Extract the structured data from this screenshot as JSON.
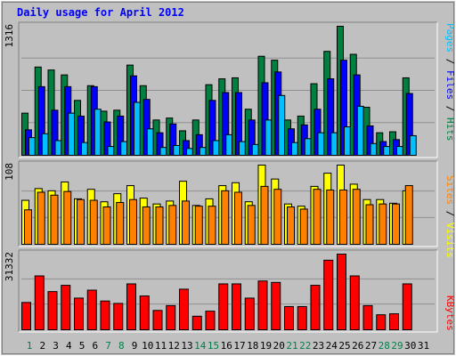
{
  "title": "Daily usage for April 2012",
  "colors": {
    "background": "#c0c0c0",
    "panel": "#c0c0c0",
    "grid": "#909090",
    "hits": "#008040",
    "files": "#0000ff",
    "pages": "#00c0ff",
    "visits": "#ffff00",
    "sites": "#ff8000",
    "kbytes": "#ff0000",
    "weekend_label": "#00804c",
    "weekday_label": "#000000"
  },
  "right_labels": {
    "pages": "Pages",
    "files": "Files",
    "hits": "Hits",
    "sites": "Sites",
    "visits": "Visits",
    "kbytes": "KBytes",
    "sep": " / "
  },
  "chart_data": [
    {
      "type": "bar",
      "name": "hits-files-pages",
      "max_label": "1316",
      "ylim": [
        0,
        1316
      ],
      "categories": [
        "1",
        "2",
        "3",
        "4",
        "5",
        "6",
        "7",
        "8",
        "9",
        "10",
        "11",
        "12",
        "13",
        "14",
        "15",
        "16",
        "17",
        "18",
        "19",
        "20",
        "21",
        "22",
        "23",
        "24",
        "25",
        "26",
        "27",
        "28",
        "29",
        "30",
        "31"
      ],
      "series": [
        {
          "name": "Hits",
          "values": [
            430,
            900,
            870,
            820,
            560,
            710,
            450,
            460,
            920,
            710,
            360,
            380,
            250,
            360,
            720,
            780,
            790,
            470,
            1010,
            970,
            360,
            400,
            730,
            1060,
            1316,
            1030,
            490,
            230,
            240,
            790,
            0
          ]
        },
        {
          "name": "Files",
          "values": [
            260,
            700,
            460,
            700,
            400,
            700,
            340,
            400,
            810,
            570,
            230,
            320,
            150,
            210,
            560,
            640,
            640,
            360,
            740,
            850,
            270,
            310,
            470,
            780,
            970,
            820,
            300,
            140,
            160,
            630,
            0
          ]
        },
        {
          "name": "Pages",
          "values": [
            180,
            220,
            150,
            430,
            130,
            470,
            90,
            140,
            540,
            270,
            80,
            100,
            70,
            80,
            150,
            210,
            140,
            110,
            360,
            610,
            130,
            170,
            230,
            230,
            290,
            500,
            120,
            90,
            90,
            200,
            0
          ]
        }
      ]
    },
    {
      "type": "bar",
      "name": "visits-sites",
      "max_label": "108",
      "ylim": [
        0,
        108
      ],
      "categories": [
        "1",
        "2",
        "3",
        "4",
        "5",
        "6",
        "7",
        "8",
        "9",
        "10",
        "11",
        "12",
        "13",
        "14",
        "15",
        "16",
        "17",
        "18",
        "19",
        "20",
        "21",
        "22",
        "23",
        "24",
        "25",
        "26",
        "27",
        "28",
        "29",
        "30",
        "31"
      ],
      "series": [
        {
          "name": "Visits",
          "values": [
            60,
            76,
            73,
            85,
            62,
            75,
            58,
            69,
            80,
            63,
            55,
            59,
            86,
            53,
            62,
            80,
            84,
            58,
            108,
            89,
            55,
            52,
            79,
            97,
            108,
            82,
            61,
            61,
            56,
            73,
            0
          ]
        },
        {
          "name": "Sites",
          "values": [
            47,
            71,
            67,
            72,
            61,
            60,
            51,
            57,
            61,
            51,
            51,
            53,
            59,
            52,
            52,
            73,
            71,
            53,
            79,
            75,
            51,
            48,
            75,
            74,
            74,
            75,
            54,
            55,
            55,
            80,
            0
          ]
        }
      ]
    },
    {
      "type": "bar",
      "name": "kbytes",
      "max_label": "31332",
      "ylim": [
        0,
        31332
      ],
      "categories": [
        "1",
        "2",
        "3",
        "4",
        "5",
        "6",
        "7",
        "8",
        "9",
        "10",
        "11",
        "12",
        "13",
        "14",
        "15",
        "16",
        "17",
        "18",
        "19",
        "20",
        "21",
        "22",
        "23",
        "24",
        "25",
        "26",
        "27",
        "28",
        "29",
        "30",
        "31"
      ],
      "series": [
        {
          "name": "KBytes",
          "values": [
            11300,
            22300,
            15800,
            18400,
            13100,
            16400,
            11900,
            10900,
            19000,
            14000,
            8000,
            10000,
            16800,
            5600,
            7700,
            19000,
            19000,
            13100,
            20200,
            19600,
            9600,
            9600,
            18400,
            28800,
            31332,
            22300,
            10000,
            6200,
            6600,
            19000,
            0
          ]
        }
      ]
    }
  ],
  "weekend_days": [
    1,
    7,
    8,
    14,
    15,
    21,
    22,
    28,
    29
  ]
}
